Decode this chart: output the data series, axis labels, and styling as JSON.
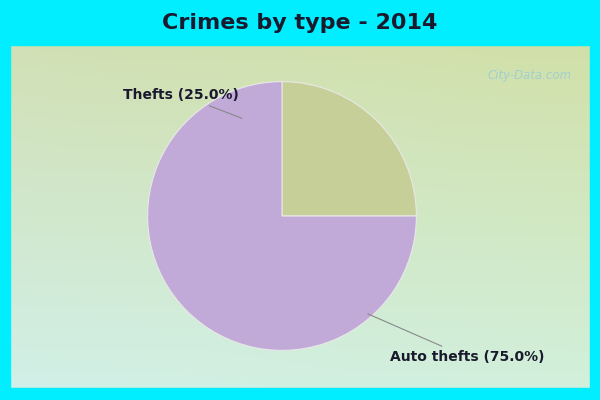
{
  "title": "Crimes by type - 2014",
  "slices": [
    {
      "label": "Thefts",
      "pct": 25.0,
      "color": "#c5cf97"
    },
    {
      "label": "Auto thefts",
      "pct": 75.0,
      "color": "#c2aad8"
    }
  ],
  "bg_cyan": "#00eeff",
  "title_fontsize": 16,
  "label_fontsize": 10,
  "watermark": "City-Data.com",
  "title_color": "#1a1a2e",
  "label_color": "#1a1a2e"
}
